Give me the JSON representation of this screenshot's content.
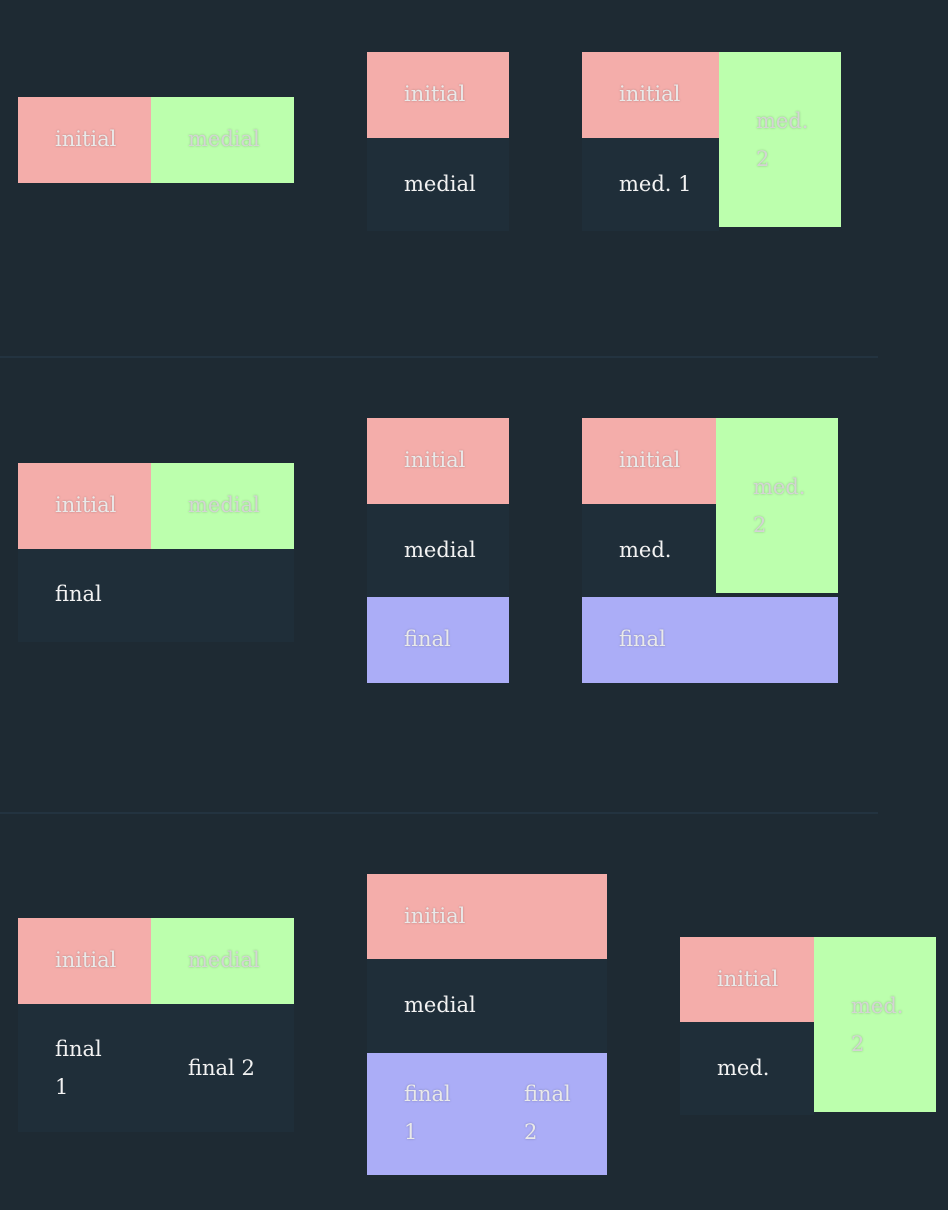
{
  "colors": {
    "background": "#1e2a33",
    "initial": "#f4adaa",
    "medial": "#bcffad",
    "final": "#abadf7",
    "dark_cell": "#1f2e39"
  },
  "row1": {
    "d1": {
      "initial": "initial",
      "medial": "medial"
    },
    "d2": {
      "initial": "initial",
      "medial": "medial"
    },
    "d3": {
      "initial": "initial",
      "med1": "med. 1",
      "med2": "med. 2"
    }
  },
  "row2": {
    "d1": {
      "initial": "initial",
      "medial": "medial",
      "final": "final"
    },
    "d2": {
      "initial": "initial",
      "medial": "medial",
      "final": "final"
    },
    "d3": {
      "initial": "initial",
      "med": "med.",
      "med2": "med. 2",
      "final": "final"
    }
  },
  "row3": {
    "d1": {
      "initial": "initial",
      "medial": "medial",
      "final1": "final 1",
      "final2": "final 2"
    },
    "d2": {
      "initial": "initial",
      "medial": "medial",
      "final1": "final 1",
      "final2": "final 2"
    },
    "d3": {
      "initial": "initial",
      "med": "med.",
      "med2": "med. 2"
    }
  }
}
